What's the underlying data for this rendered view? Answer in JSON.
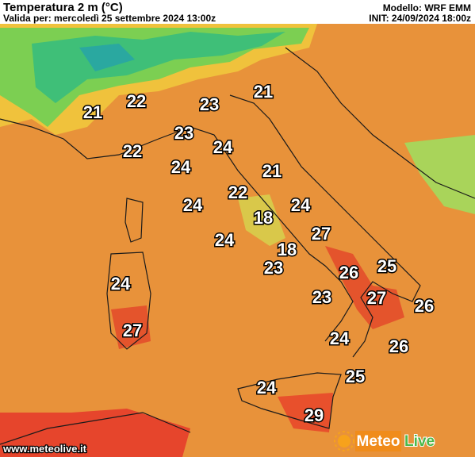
{
  "header": {
    "title": "Temperatura 2 m (°C)",
    "valid": "Valida per: mercoledì 25 settembre 2024 13:00z",
    "model": "Modello: WRF EMM",
    "init": "INIT: 24/09/2024 18:00z"
  },
  "map": {
    "labels": [
      21,
      22,
      23,
      21,
      23,
      22,
      24,
      24,
      21,
      22,
      24,
      18,
      24,
      24,
      27,
      18,
      23,
      26,
      25,
      24,
      23,
      27,
      26,
      27,
      24,
      26,
      25,
      24,
      29
    ]
  },
  "footer": {
    "url": "www.meteolive.it"
  },
  "logo": {
    "meteo": "Meteo",
    "live": "Live"
  }
}
